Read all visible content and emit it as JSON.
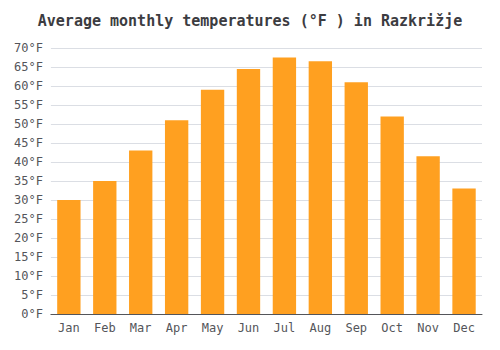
{
  "chart_data": {
    "type": "bar",
    "title": "Average monthly temperatures (°F ) in Razkrižje",
    "categories": [
      "Jan",
      "Feb",
      "Mar",
      "Apr",
      "May",
      "Jun",
      "Jul",
      "Aug",
      "Sep",
      "Oct",
      "Nov",
      "Dec"
    ],
    "values": [
      30.0,
      35.0,
      43.0,
      51.0,
      59.0,
      64.5,
      67.5,
      66.5,
      61.0,
      52.0,
      41.5,
      33.0
    ],
    "color": "#FFA020",
    "ylim": [
      0,
      70
    ],
    "yticks": [
      {
        "value": 0,
        "label": "0°F"
      },
      {
        "value": 5,
        "label": "5°F"
      },
      {
        "value": 10,
        "label": "10°F"
      },
      {
        "value": 15,
        "label": "15°F"
      },
      {
        "value": 20,
        "label": "20°F"
      },
      {
        "value": 25,
        "label": "25°F"
      },
      {
        "value": 30,
        "label": "30°F"
      },
      {
        "value": 35,
        "label": "35°F"
      },
      {
        "value": 40,
        "label": "40°F"
      },
      {
        "value": 45,
        "label": "45°F"
      },
      {
        "value": 50,
        "label": "50°F"
      },
      {
        "value": 55,
        "label": "55°F"
      },
      {
        "value": 60,
        "label": "60°F"
      },
      {
        "value": 65,
        "label": "65°F"
      },
      {
        "value": 70,
        "label": "70°F"
      }
    ],
    "grid": true
  }
}
